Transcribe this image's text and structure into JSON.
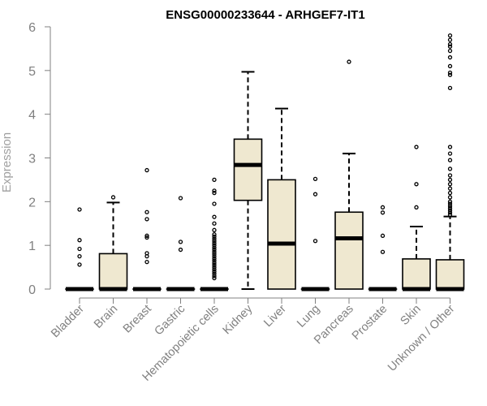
{
  "chart_data": {
    "type": "boxplot",
    "title": "ENSG00000233644 - ARHGEF7-IT1",
    "ylabel": "Expression",
    "xlabel": "",
    "ylim": [
      0,
      6
    ],
    "yticks": [
      0,
      1,
      2,
      3,
      4,
      5,
      6
    ],
    "grid": false,
    "box_fill": "#efe8d0",
    "box_stroke": "#000000",
    "axis_color": "#808080",
    "categories": [
      "Bladder",
      "Brain",
      "Breast",
      "Gastric",
      "Hematopoietic cells",
      "Kidney",
      "Liver",
      "Lung",
      "Pancreas",
      "Prostate",
      "Skin",
      "Unknown / Other"
    ],
    "boxes": [
      {
        "q1": 0,
        "median": 0,
        "q3": 0,
        "whisker_low": 0,
        "whisker_high": 0,
        "outliers": [
          1.82,
          1.12,
          0.92,
          0.75,
          0.56
        ]
      },
      {
        "q1": 0,
        "median": 0,
        "q3": 0.81,
        "whisker_low": 0,
        "whisker_high": 1.98,
        "outliers": [
          2.1
        ]
      },
      {
        "q1": 0,
        "median": 0,
        "q3": 0,
        "whisker_low": 0,
        "whisker_high": 0,
        "outliers": [
          2.72,
          1.76,
          1.6,
          1.22,
          1.18,
          0.82,
          0.75,
          0.62
        ]
      },
      {
        "q1": 0,
        "median": 0,
        "q3": 0,
        "whisker_low": 0,
        "whisker_high": 0,
        "outliers": [
          2.08,
          1.08,
          0.9
        ]
      },
      {
        "q1": 0,
        "median": 0,
        "q3": 0,
        "whisker_low": 0,
        "whisker_high": 0,
        "outliers": [
          2.5,
          2.25,
          2.2,
          1.95,
          1.65,
          1.5,
          1.35,
          1.25,
          1.2,
          1.15,
          1.1,
          1.05,
          1.0,
          0.95,
          0.9,
          0.85,
          0.8,
          0.75,
          0.7,
          0.65,
          0.6,
          0.55,
          0.5,
          0.45,
          0.4,
          0.35,
          0.3,
          0.25
        ]
      },
      {
        "q1": 2.03,
        "median": 2.84,
        "q3": 3.43,
        "whisker_low": 0,
        "whisker_high": 4.97,
        "outliers": []
      },
      {
        "q1": 0,
        "median": 1.04,
        "q3": 2.5,
        "whisker_low": 0,
        "whisker_high": 4.13,
        "outliers": []
      },
      {
        "q1": 0,
        "median": 0,
        "q3": 0,
        "whisker_low": 0,
        "whisker_high": 0,
        "outliers": [
          2.52,
          2.17,
          1.1
        ]
      },
      {
        "q1": 0,
        "median": 1.16,
        "q3": 1.76,
        "whisker_low": 0,
        "whisker_high": 3.1,
        "outliers": [
          5.2
        ]
      },
      {
        "q1": 0,
        "median": 0,
        "q3": 0,
        "whisker_low": 0,
        "whisker_high": 0,
        "outliers": [
          1.87,
          1.75,
          1.22,
          0.85
        ]
      },
      {
        "q1": 0,
        "median": 0,
        "q3": 0.69,
        "whisker_low": 0,
        "whisker_high": 1.43,
        "outliers": [
          3.25,
          2.4,
          1.87
        ]
      },
      {
        "q1": 0,
        "median": 0,
        "q3": 0.67,
        "whisker_low": 0,
        "whisker_high": 1.66,
        "outliers": [
          5.8,
          5.7,
          5.6,
          5.55,
          5.45,
          5.3,
          5.1,
          4.95,
          4.9,
          4.6,
          3.25,
          3.1,
          2.95,
          2.75,
          2.6,
          2.5,
          2.4,
          2.3,
          2.2,
          2.1,
          2.0,
          1.95,
          1.9,
          1.85,
          1.8,
          1.75,
          1.7
        ]
      }
    ]
  }
}
